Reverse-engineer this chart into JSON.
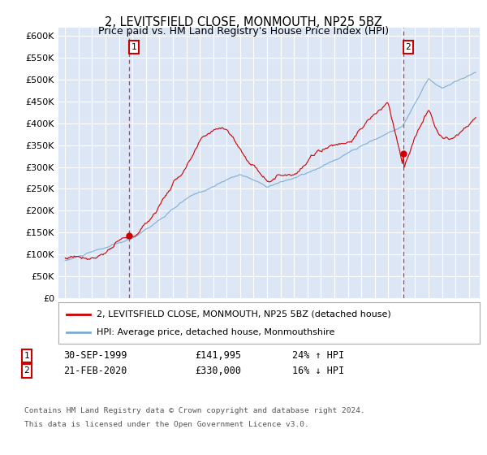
{
  "title": "2, LEVITSFIELD CLOSE, MONMOUTH, NP25 5BZ",
  "subtitle": "Price paid vs. HM Land Registry's House Price Index (HPI)",
  "legend_line1": "2, LEVITSFIELD CLOSE, MONMOUTH, NP25 5BZ (detached house)",
  "legend_line2": "HPI: Average price, detached house, Monmouthshire",
  "sale1_date": "30-SEP-1999",
  "sale1_price": 141995,
  "sale1_price_str": "£141,995",
  "sale1_hpi": "24% ↑ HPI",
  "sale1_year": 1999.75,
  "sale2_date": "21-FEB-2020",
  "sale2_price": 330000,
  "sale2_price_str": "£330,000",
  "sale2_hpi": "16% ↓ HPI",
  "sale2_year": 2020.13,
  "footnote_line1": "Contains HM Land Registry data © Crown copyright and database right 2024.",
  "footnote_line2": "This data is licensed under the Open Government Licence v3.0.",
  "plot_bg_color": "#dce6f5",
  "red_color": "#cc0000",
  "blue_color": "#7aadd4",
  "ylim": [
    0,
    620000
  ],
  "xlim": [
    1994.5,
    2025.8
  ],
  "hpi_seed": 10,
  "red_seed": 77
}
